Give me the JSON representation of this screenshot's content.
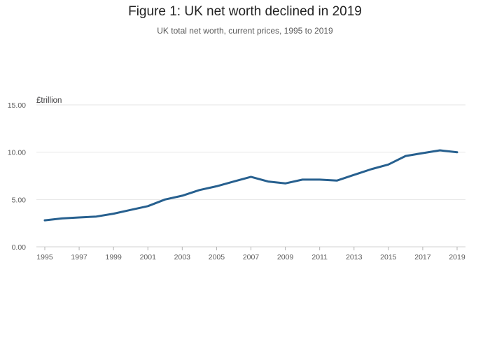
{
  "chart_data": {
    "type": "line",
    "title": "Figure 1: UK net worth declined in 2019",
    "subtitle": "UK total net worth, current prices, 1995 to 2019",
    "ylabel": "£trillion",
    "xlabel": "",
    "ylim": [
      0,
      15
    ],
    "yticks": [
      "0.00",
      "5.00",
      "10.00",
      "15.00"
    ],
    "yticks_values": [
      0,
      5,
      10,
      15
    ],
    "xlim": [
      1995,
      2019
    ],
    "xticks": [
      "1995",
      "1997",
      "1999",
      "2001",
      "2003",
      "2005",
      "2007",
      "2009",
      "2011",
      "2013",
      "2015",
      "2017",
      "2019"
    ],
    "grid": true,
    "color": "#27608f",
    "series": [
      {
        "name": "UK total net worth",
        "x": [
          1995,
          1996,
          1997,
          1998,
          1999,
          2000,
          2001,
          2002,
          2003,
          2004,
          2005,
          2006,
          2007,
          2008,
          2009,
          2010,
          2011,
          2012,
          2013,
          2014,
          2015,
          2016,
          2017,
          2018,
          2019
        ],
        "values": [
          2.8,
          3.0,
          3.1,
          3.2,
          3.5,
          3.9,
          4.3,
          5.0,
          5.4,
          6.0,
          6.4,
          6.9,
          7.4,
          6.9,
          6.7,
          7.1,
          7.1,
          7.0,
          7.6,
          8.2,
          8.7,
          9.6,
          9.9,
          10.2,
          10.0
        ]
      }
    ]
  }
}
